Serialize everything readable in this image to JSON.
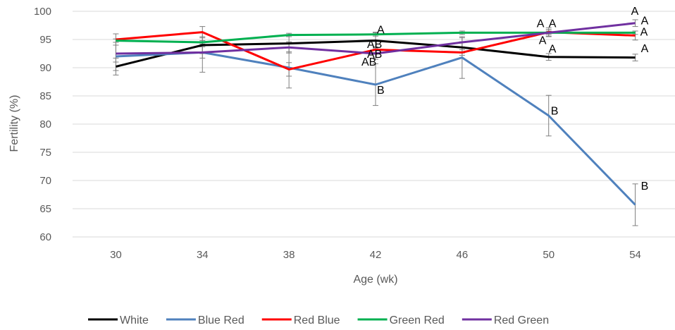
{
  "chart_data": {
    "type": "line",
    "title": "",
    "xlabel": "Age (wk)",
    "ylabel": "Fertility (%)",
    "x": [
      30,
      34,
      38,
      42,
      46,
      50,
      54
    ],
    "ylim": [
      60,
      100
    ],
    "yticks": [
      60,
      65,
      70,
      75,
      80,
      85,
      90,
      95,
      100
    ],
    "grid": "horizontal",
    "legend": "bottom",
    "series": [
      {
        "name": "White",
        "color": "#000000",
        "values": [
          90.2,
          94.0,
          94.3,
          94.8,
          93.6,
          91.9,
          91.8
        ],
        "errors": [
          1.5,
          1.5,
          1.5,
          1.5,
          1.0,
          0.6,
          0.6
        ]
      },
      {
        "name": "Blue Red",
        "color": "#4F81BD",
        "values": [
          92.0,
          92.7,
          90.0,
          87.0,
          91.8,
          81.5,
          65.7
        ],
        "errors": [
          2.5,
          3.5,
          3.6,
          3.7,
          3.7,
          3.6,
          3.7
        ]
      },
      {
        "name": "Red Blue",
        "color": "#FF0000",
        "values": [
          95.0,
          96.3,
          89.7,
          93.2,
          92.7,
          96.3,
          95.7
        ],
        "errors": [
          1.0,
          1.0,
          1.2,
          0.5,
          0.5,
          0.8,
          0.8
        ]
      },
      {
        "name": "Green Red",
        "color": "#00B050",
        "values": [
          94.8,
          94.5,
          95.8,
          95.9,
          96.2,
          96.2,
          96.2
        ],
        "errors": [
          0.3,
          0.3,
          0.3,
          0.3,
          0.3,
          0.3,
          0.3
        ]
      },
      {
        "name": "Red Green",
        "color": "#7030A0",
        "values": [
          92.5,
          92.7,
          93.6,
          92.5,
          94.5,
          96.2,
          97.9
        ],
        "errors": [
          1.5,
          1.0,
          1.0,
          1.0,
          0.8,
          0.6,
          0.6
        ]
      }
    ],
    "annotations": [
      {
        "text": "A",
        "x": 42,
        "y": 96.7
      },
      {
        "text": "AB",
        "x": 42,
        "y": 94.1
      },
      {
        "text": "AB",
        "x": 42,
        "y": 92.4
      },
      {
        "text": "AB",
        "x": 42,
        "y": 91.0
      },
      {
        "text": "B",
        "x": 42,
        "y": 86.0
      },
      {
        "text": "A",
        "x": 50,
        "y": 97.8
      },
      {
        "text": "A",
        "x": 50,
        "y": 97.8
      },
      {
        "text": "A",
        "x": 50,
        "y": 94.8
      },
      {
        "text": "A",
        "x": 50,
        "y": 93.3
      },
      {
        "text": "B",
        "x": 50,
        "y": 82.3
      },
      {
        "text": "A",
        "x": 54,
        "y": 100.0
      },
      {
        "text": "A",
        "x": 54,
        "y": 98.3
      },
      {
        "text": "A",
        "x": 54,
        "y": 96.3
      },
      {
        "text": "A",
        "x": 54,
        "y": 93.4
      },
      {
        "text": "B",
        "x": 54,
        "y": 69.0
      }
    ]
  }
}
